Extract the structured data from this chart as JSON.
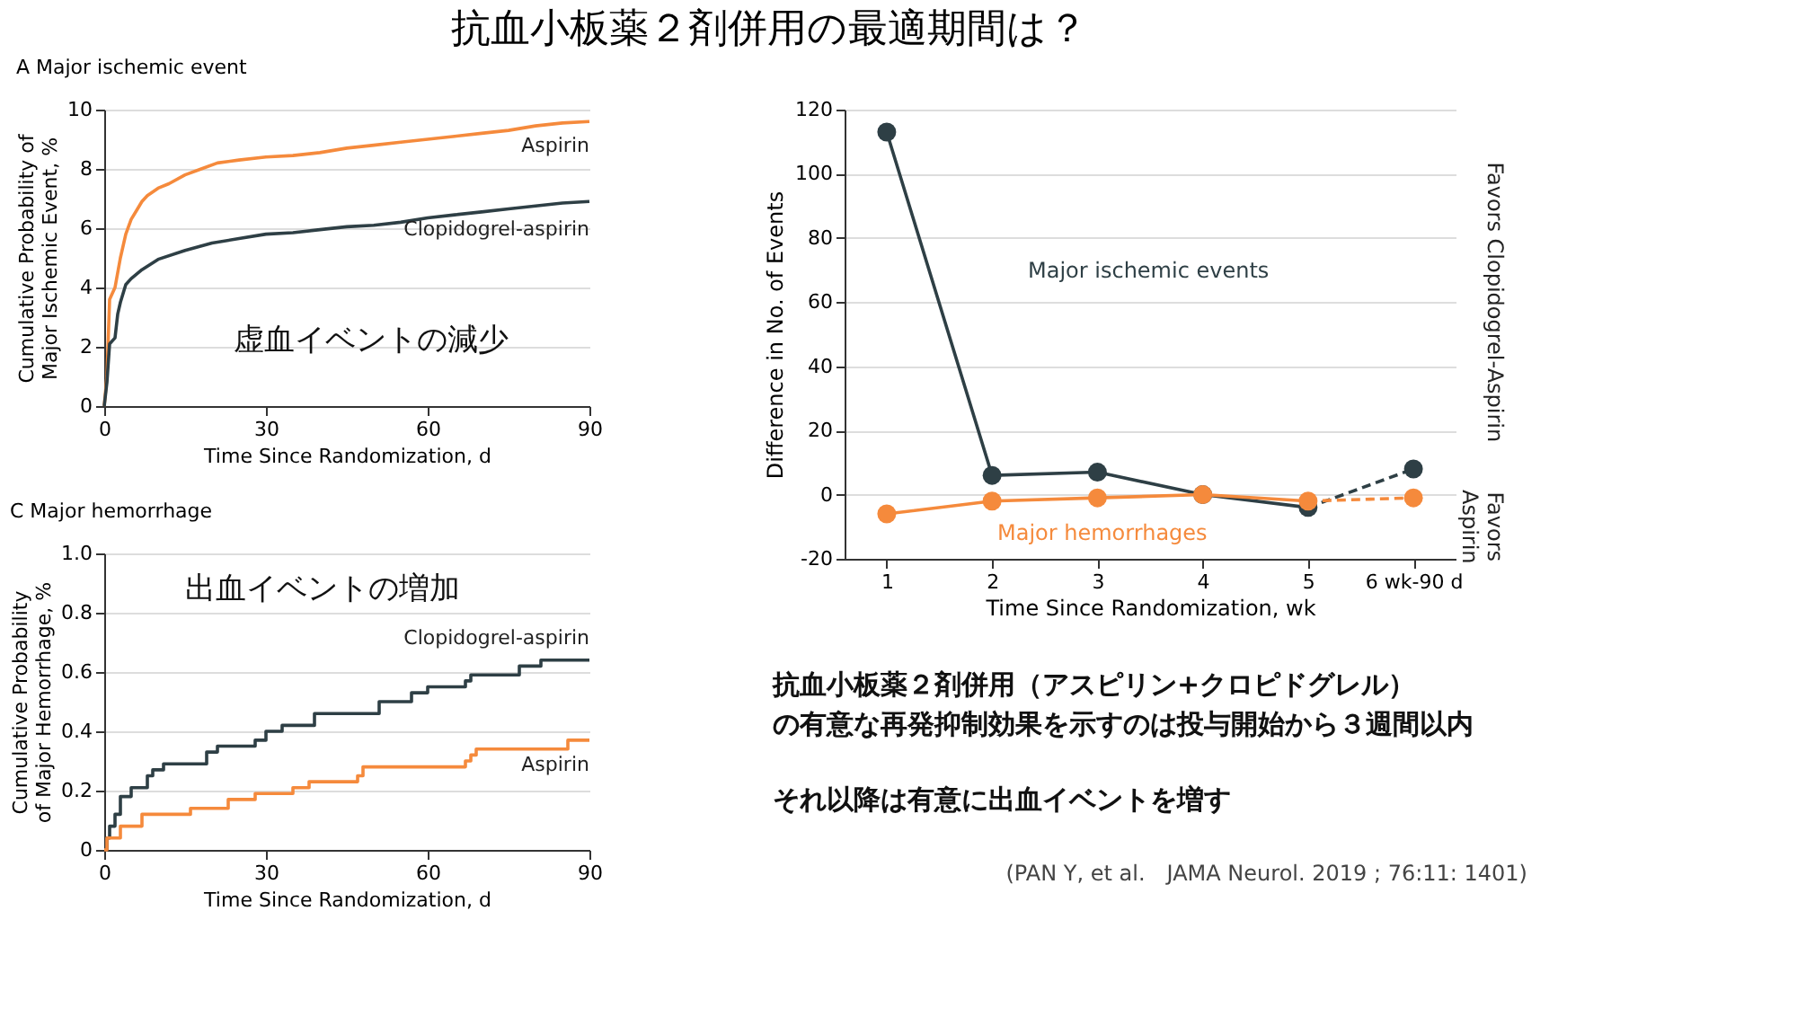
{
  "chart_data": [
    {
      "type": "line",
      "title": "抗血小板薬２剤併用の最適期間は？",
      "subtitle": "A  Major ischemic event",
      "xlabel": "Time Since Randomization, d",
      "ylabel": "Cumulative Probability of Major Ischemic Event, %",
      "xlim": [
        0,
        90
      ],
      "xticks": [
        0,
        30,
        60,
        90
      ],
      "ylim": [
        0,
        10
      ],
      "yticks": [
        0,
        2,
        4,
        6,
        8,
        10
      ],
      "grid": "y",
      "annotations": [
        "虚血イベントの減少"
      ],
      "series": [
        {
          "name": "Aspirin",
          "color": "#f58a3c",
          "x": [
            0,
            0.5,
            1,
            2,
            3,
            4,
            5,
            6,
            7,
            8,
            10,
            12,
            15,
            18,
            21,
            25,
            30,
            35,
            40,
            45,
            50,
            55,
            60,
            65,
            70,
            75,
            80,
            85,
            90
          ],
          "values": [
            0,
            1,
            3.6,
            4.0,
            5.0,
            5.8,
            6.3,
            6.6,
            6.9,
            7.1,
            7.35,
            7.5,
            7.8,
            8.0,
            8.2,
            8.3,
            8.4,
            8.45,
            8.55,
            8.7,
            8.8,
            8.9,
            9.0,
            9.1,
            9.2,
            9.3,
            9.45,
            9.55,
            9.6
          ]
        },
        {
          "name": "Clopidogrel-aspirin",
          "color": "#2e3f45",
          "x": [
            0,
            0.5,
            1,
            2,
            2.5,
            3,
            4,
            5,
            7,
            10,
            15,
            20,
            25,
            30,
            35,
            40,
            45,
            50,
            55,
            60,
            65,
            70,
            75,
            80,
            85,
            90
          ],
          "values": [
            0,
            0.8,
            2.1,
            2.3,
            3.1,
            3.5,
            4.1,
            4.3,
            4.6,
            4.95,
            5.25,
            5.5,
            5.65,
            5.8,
            5.85,
            5.95,
            6.05,
            6.1,
            6.2,
            6.35,
            6.45,
            6.55,
            6.65,
            6.75,
            6.85,
            6.9
          ]
        }
      ]
    },
    {
      "type": "step",
      "title": "C  Major hemorrhage",
      "xlabel": "Time Since Randomization, d",
      "ylabel": "Cumulative Probability of Major Hemorrhage, %",
      "xlim": [
        0,
        90
      ],
      "xticks": [
        0,
        30,
        60,
        90
      ],
      "ylim": [
        0,
        1
      ],
      "yticks": [
        0,
        0.2,
        0.4,
        0.6,
        0.8,
        {
          "value": 1,
          "label": "1.0"
        }
      ],
      "grid": "y",
      "annotations": [
        "出血イベントの増加"
      ],
      "series": [
        {
          "name": "Clopidogrel-aspirin",
          "color": "#2e3f45",
          "x": [
            0,
            0.5,
            1,
            2,
            3,
            5,
            8,
            9,
            11,
            19,
            21,
            28,
            30,
            33,
            39,
            51,
            57,
            60,
            67,
            68,
            77,
            81,
            90
          ],
          "values": [
            0,
            0.04,
            0.08,
            0.12,
            0.18,
            0.21,
            0.25,
            0.27,
            0.29,
            0.33,
            0.35,
            0.37,
            0.4,
            0.42,
            0.46,
            0.5,
            0.53,
            0.55,
            0.57,
            0.59,
            0.62,
            0.64,
            0.64
          ]
        },
        {
          "name": "Aspirin",
          "color": "#f58a3c",
          "x": [
            0,
            0.5,
            3,
            7,
            16,
            23,
            28,
            35,
            38,
            47,
            48,
            67,
            68,
            69,
            86,
            90
          ],
          "values": [
            0,
            0.04,
            0.08,
            0.12,
            0.14,
            0.17,
            0.19,
            0.21,
            0.23,
            0.25,
            0.28,
            0.3,
            0.32,
            0.34,
            0.37,
            0.37
          ]
        }
      ]
    },
    {
      "type": "line",
      "xlabel": "Time Since Randomization, wk",
      "ylabel": "Difference in No. of Events",
      "categories": [
        "1",
        "2",
        "3",
        "4",
        "5",
        "6 wk-90 d"
      ],
      "ylim": [
        -20,
        120
      ],
      "yticks": [
        -20,
        0,
        20,
        40,
        60,
        80,
        100,
        120
      ],
      "grid": "y",
      "marker": "circle",
      "annotations": [
        "Favors Clopidogrel-Aspirin",
        "Favors Aspirin",
        "抗血小板薬２剤併用（アスピリン+クロピドグレル）",
        "の有意な再発抑制効果を示すのは投与開始から３週間以内",
        "それ以降は有意に出血イベントを増す",
        "(PAN Y, et al.　JAMA Neurol. 2019 ; 76:11: 1401)"
      ],
      "series": [
        {
          "name": "Major ischemic events",
          "color": "#2e3f45",
          "values": [
            113,
            6,
            7,
            0,
            -4,
            null
          ]
        },
        {
          "color": "#2e3f45",
          "line_style": "dashed",
          "values": [
            null,
            null,
            null,
            null,
            -4,
            8
          ]
        },
        {
          "name": "Major hemorrhages",
          "color": "#f58a3c",
          "values": [
            -6,
            -2,
            -1,
            0,
            -2,
            null
          ]
        },
        {
          "color": "#f58a3c",
          "line_style": "dashed",
          "values": [
            null,
            null,
            null,
            null,
            -2,
            -1
          ]
        }
      ]
    }
  ]
}
